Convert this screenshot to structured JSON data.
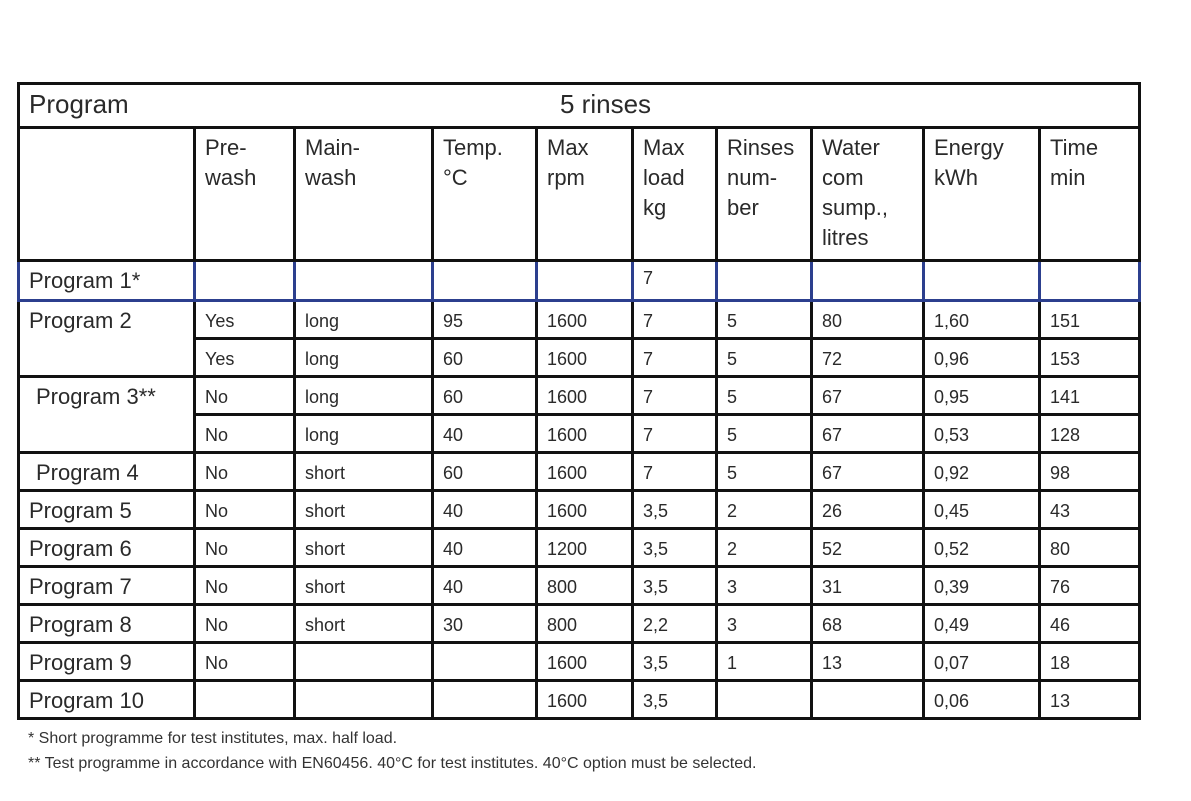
{
  "table": {
    "title_label": "Program",
    "title_group": "5 rinses",
    "columns": [
      "",
      "Pre-\nwash",
      "Main-\nwash",
      "Temp.\n°C",
      "Max\nrpm",
      "Max\nload\nkg",
      "Rinses\nnum-\nber",
      "Water\ncom\nsump.,\nlitres",
      "Energy\nkWh",
      "Time\nmin"
    ],
    "programs": [
      {
        "label": "Program 1*",
        "rows": [
          [
            "",
            "",
            "",
            "",
            "7",
            "",
            "",
            "",
            ""
          ]
        ]
      },
      {
        "label": "Program 2",
        "rows": [
          [
            "Yes",
            "long",
            "95",
            "1600",
            "7",
            "5",
            "80",
            "1,60",
            "151"
          ],
          [
            "Yes",
            "long",
            "60",
            "1600",
            "7",
            "5",
            "72",
            "0,96",
            "153"
          ]
        ]
      },
      {
        "label": "Program 3**",
        "rows": [
          [
            "No",
            "long",
            "60",
            "1600",
            "7",
            "5",
            "67",
            "0,95",
            "141"
          ],
          [
            "No",
            "long",
            "40",
            "1600",
            "7",
            "5",
            "67",
            "0,53",
            "128"
          ]
        ]
      },
      {
        "label": "Program 4",
        "rows": [
          [
            "No",
            "short",
            "60",
            "1600",
            "7",
            "5",
            "67",
            "0,92",
            "98"
          ]
        ]
      },
      {
        "label": "Program 5",
        "rows": [
          [
            "No",
            "short",
            "40",
            "1600",
            "3,5",
            "2",
            "26",
            "0,45",
            "43"
          ]
        ]
      },
      {
        "label": "Program 6",
        "rows": [
          [
            "No",
            "short",
            "40",
            "1200",
            "3,5",
            "2",
            "52",
            "0,52",
            "80"
          ]
        ]
      },
      {
        "label": "Program 7",
        "rows": [
          [
            "No",
            "short",
            "40",
            "800",
            "3,5",
            "3",
            "31",
            "0,39",
            "76"
          ]
        ]
      },
      {
        "label": "Program 8",
        "rows": [
          [
            "No",
            "short",
            "30",
            "800",
            "2,2",
            "3",
            "68",
            "0,49",
            "46"
          ]
        ]
      },
      {
        "label": "Program 9",
        "rows": [
          [
            "No",
            "",
            "",
            "1600",
            "3,5",
            "1",
            "13",
            "0,07",
            "18"
          ]
        ]
      },
      {
        "label": "Program 10",
        "rows": [
          [
            "",
            "",
            "",
            "1600",
            "3,5",
            "",
            "",
            "0,06",
            "13"
          ]
        ]
      }
    ],
    "highlight_color": "#2c3f8e"
  },
  "footnotes": [
    "* Short programme for test institutes, max. half load.",
    "** Test programme in accordance with EN60456. 40°C for test institutes. 40°C option must be selected."
  ]
}
